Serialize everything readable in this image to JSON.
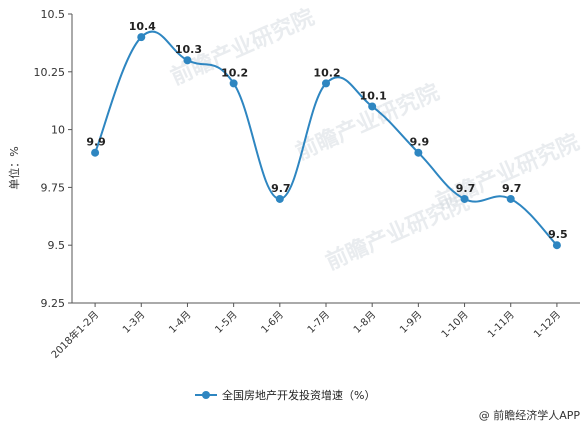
{
  "chart_data": {
    "type": "line",
    "ylabel": "单位：%",
    "ylim": [
      9.25,
      10.5
    ],
    "yticks": [
      "9.25",
      "9.5",
      "9.75",
      "10",
      "10.25",
      "10.5"
    ],
    "categories": [
      "2018年1-2月",
      "1-3月",
      "1-4月",
      "1-5月",
      "1-6月",
      "1-7月",
      "1-8月",
      "1-9月",
      "1-10月",
      "1-11月",
      "1-12月"
    ],
    "series": [
      {
        "name": "全国房地产开发投资增速（%）",
        "values": [
          9.9,
          10.4,
          10.3,
          10.2,
          9.7,
          10.2,
          10.1,
          9.9,
          9.7,
          9.7,
          9.5
        ],
        "labels": [
          "9.9",
          "10.4",
          "10.3",
          "10.2",
          "9.7",
          "10.2",
          "10.1",
          "9.9",
          "9.7",
          "9.7",
          "9.5"
        ],
        "color": "#2e86c1"
      }
    ],
    "grid": false,
    "legend": "bottom-center"
  },
  "watermark": {
    "text": "前瞻产业研究院",
    "color": "#cfd6dc"
  },
  "footer": {
    "text": "@ 前瞻经济学人APP"
  }
}
